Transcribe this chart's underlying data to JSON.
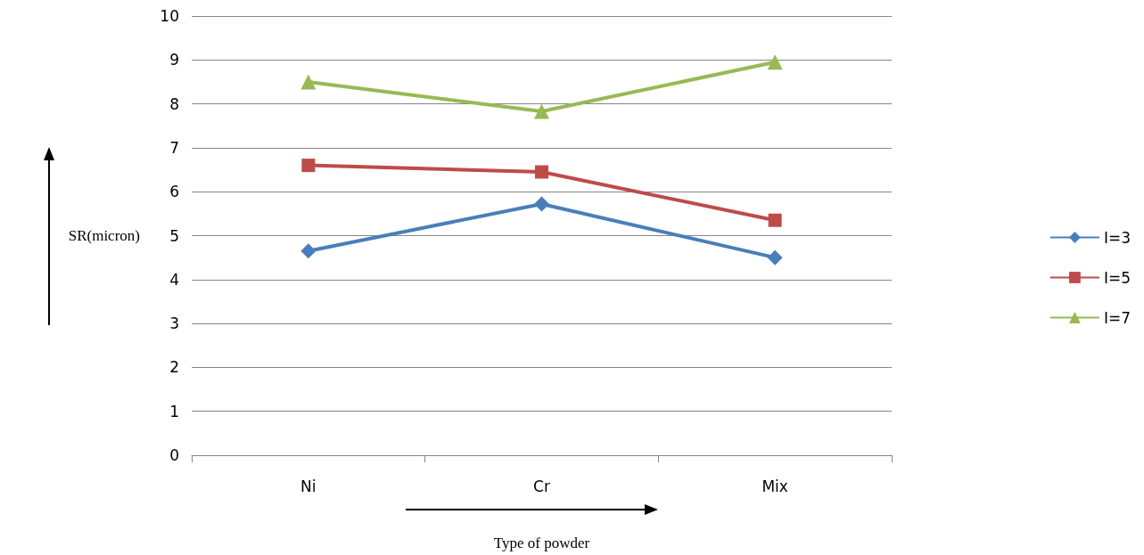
{
  "chart_data": {
    "type": "line",
    "xlabel": "Type of powder",
    "ylabel": "SR(micron)",
    "categories": [
      "Ni",
      "Cr",
      "Mix"
    ],
    "series": [
      {
        "name": "I=3",
        "color": "#4a7ebb",
        "marker": "diamond",
        "values": [
          4.65,
          5.72,
          4.5
        ]
      },
      {
        "name": "I=5",
        "color": "#be4b48",
        "marker": "square",
        "values": [
          6.6,
          6.45,
          5.35
        ]
      },
      {
        "name": "I=7",
        "color": "#98b954",
        "marker": "triangle",
        "values": [
          8.5,
          7.83,
          8.95
        ]
      }
    ],
    "ylim": [
      0,
      10
    ],
    "yticks": [
      0,
      1,
      2,
      3,
      4,
      5,
      6,
      7,
      8,
      9,
      10
    ],
    "grid": "y",
    "legend": "right",
    "line_style": "solid"
  }
}
